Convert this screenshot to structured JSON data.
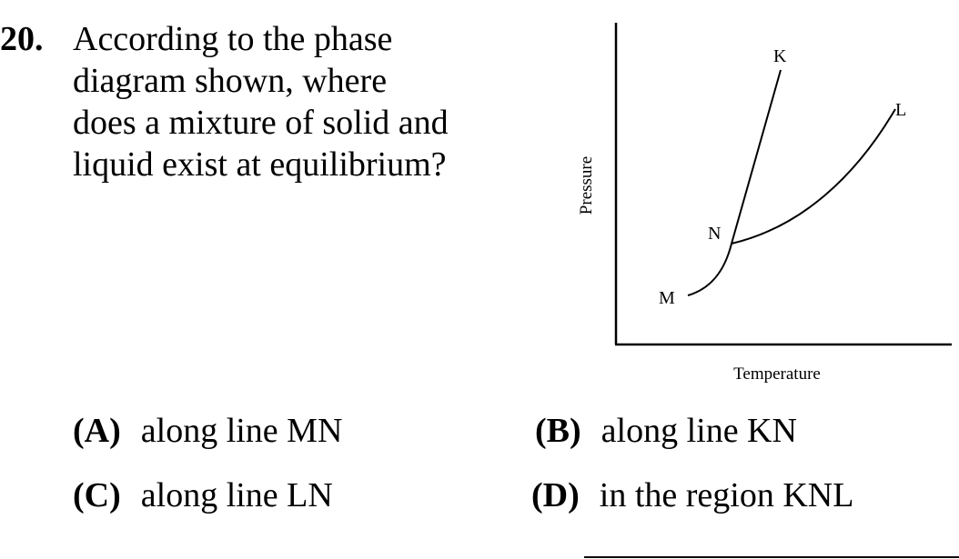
{
  "question": {
    "number": "20.",
    "text": "According to the phase diagram shown, where does a mixture of solid and liquid exist at equilibrium?"
  },
  "diagram": {
    "y_axis_label": "Pressure",
    "x_axis_label": "Temperature",
    "points": {
      "K": "K",
      "L": "L",
      "N": "N",
      "M": "M"
    }
  },
  "choices": [
    {
      "letter": "(A)",
      "text": "along line MN"
    },
    {
      "letter": "(B)",
      "text": "along line KN"
    },
    {
      "letter": "(C)",
      "text": "along line LN"
    },
    {
      "letter": "(D)",
      "text": "in the region KNL"
    }
  ]
}
